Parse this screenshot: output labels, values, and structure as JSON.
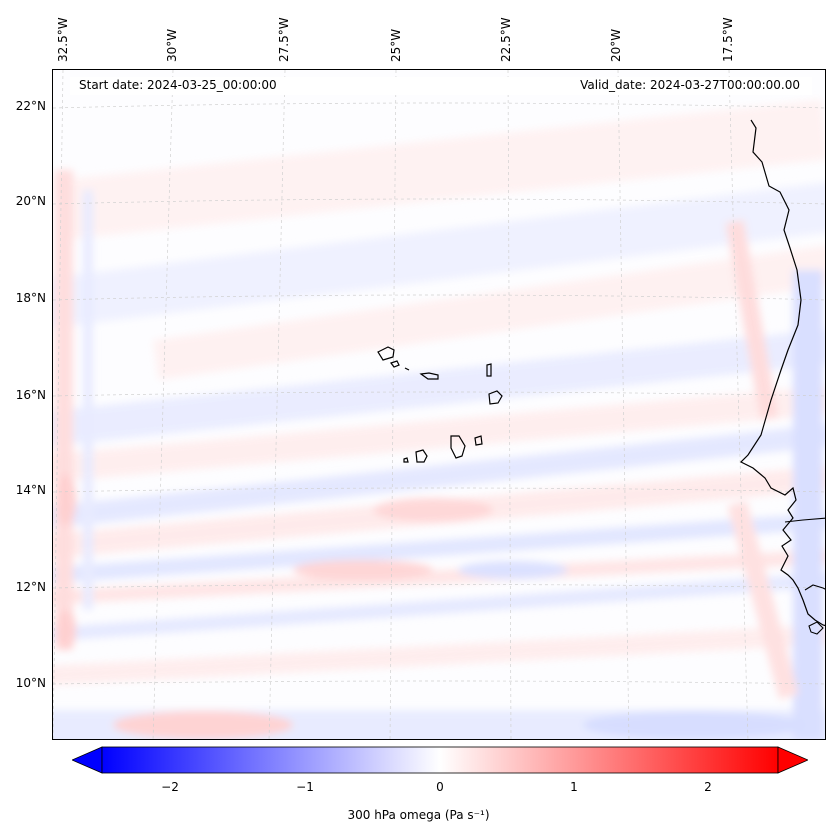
{
  "map": {
    "start_date_text": "Start date: 2024-03-25_00:00:00",
    "valid_date_text": "Valid_date: 2024-03-27T00:00:00.00",
    "longitude_labels": [
      "32.5°W",
      "30°W",
      "27.5°W",
      "25°W",
      "22.5°W",
      "20°W",
      "17.5°W"
    ],
    "latitude_labels": [
      "22°N",
      "20°N",
      "18°N",
      "16°N",
      "14°N",
      "12°N",
      "10°N"
    ],
    "extent": {
      "lon_min": -32.6,
      "lon_max": -15.8,
      "lat_min": 8.9,
      "lat_max": 22.8
    },
    "field_name": "300 hPa omega",
    "colormap": {
      "negative": "#0000ff",
      "zero": "#ffffff",
      "positive": "#ff0000"
    },
    "coastline_color": "#000000",
    "gridline_color": "#cccccc"
  },
  "colorbar": {
    "label": "300 hPa omega (Pa s⁻¹)",
    "range": [
      -2.5,
      2.5
    ],
    "ticks": [
      {
        "value": -2,
        "text": "−2"
      },
      {
        "value": -1,
        "text": "−1"
      },
      {
        "value": 0,
        "text": "0"
      },
      {
        "value": 1,
        "text": "1"
      },
      {
        "value": 2,
        "text": "2"
      }
    ],
    "extend": "both"
  }
}
